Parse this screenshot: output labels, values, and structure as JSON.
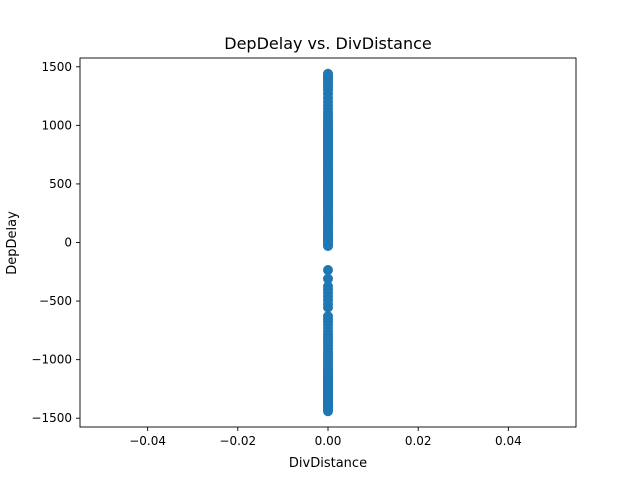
{
  "chart_data": {
    "type": "scatter",
    "title": "DepDelay vs. DivDistance",
    "xlabel": "DivDistance",
    "ylabel": "DepDelay",
    "xlim": [
      -0.055,
      0.055
    ],
    "ylim": [
      -1575,
      1575
    ],
    "x_ticks": [
      -0.04,
      -0.02,
      0.0,
      0.02,
      0.04
    ],
    "x_tick_labels": [
      "−0.04",
      "−0.02",
      "0.00",
      "0.02",
      "0.04"
    ],
    "y_ticks": [
      -1500,
      -1000,
      -500,
      0,
      500,
      1000,
      1500
    ],
    "y_tick_labels": [
      "−1500",
      "−1000",
      "−500",
      "0",
      "500",
      "1000",
      "1500"
    ],
    "grid": false,
    "marker_color": "#1f77b4",
    "series": [
      {
        "x_value": 0,
        "points": [
          {
            "x": 0,
            "y": -1440
          },
          {
            "x": 0,
            "y": -1430
          },
          {
            "x": 0,
            "y": -1420
          },
          {
            "x": 0,
            "y": -1410
          },
          {
            "x": 0,
            "y": -1400
          },
          {
            "x": 0,
            "y": -1390
          },
          {
            "x": 0,
            "y": -1380
          },
          {
            "x": 0,
            "y": -1370
          },
          {
            "x": 0,
            "y": -1360
          },
          {
            "x": 0,
            "y": -1350
          },
          {
            "x": 0,
            "y": -1340
          },
          {
            "x": 0,
            "y": -1330
          },
          {
            "x": 0,
            "y": -1320
          },
          {
            "x": 0,
            "y": -1310
          },
          {
            "x": 0,
            "y": -1300
          },
          {
            "x": 0,
            "y": -1290
          },
          {
            "x": 0,
            "y": -1280
          },
          {
            "x": 0,
            "y": -1270
          },
          {
            "x": 0,
            "y": -1260
          },
          {
            "x": 0,
            "y": -1250
          },
          {
            "x": 0,
            "y": -1240
          },
          {
            "x": 0,
            "y": -1230
          },
          {
            "x": 0,
            "y": -1220
          },
          {
            "x": 0,
            "y": -1210
          },
          {
            "x": 0,
            "y": -1200
          },
          {
            "x": 0,
            "y": -1190
          },
          {
            "x": 0,
            "y": -1180
          },
          {
            "x": 0,
            "y": -1170
          },
          {
            "x": 0,
            "y": -1160
          },
          {
            "x": 0,
            "y": -1150
          },
          {
            "x": 0,
            "y": -1140
          },
          {
            "x": 0,
            "y": -1130
          },
          {
            "x": 0,
            "y": -1120
          },
          {
            "x": 0,
            "y": -1110
          },
          {
            "x": 0,
            "y": -1100
          },
          {
            "x": 0,
            "y": -1085
          },
          {
            "x": 0,
            "y": -1070
          },
          {
            "x": 0,
            "y": -1050
          },
          {
            "x": 0,
            "y": -1030
          },
          {
            "x": 0,
            "y": -1010
          },
          {
            "x": 0,
            "y": -990
          },
          {
            "x": 0,
            "y": -970
          },
          {
            "x": 0,
            "y": -950
          },
          {
            "x": 0,
            "y": -930
          },
          {
            "x": 0,
            "y": -905
          },
          {
            "x": 0,
            "y": -880
          },
          {
            "x": 0,
            "y": -860
          },
          {
            "x": 0,
            "y": -835
          },
          {
            "x": 0,
            "y": -810
          },
          {
            "x": 0,
            "y": -785
          },
          {
            "x": 0,
            "y": -760
          },
          {
            "x": 0,
            "y": -730
          },
          {
            "x": 0,
            "y": -700
          },
          {
            "x": 0,
            "y": -675
          },
          {
            "x": 0,
            "y": -655
          },
          {
            "x": 0,
            "y": -630
          },
          {
            "x": 0,
            "y": -555
          },
          {
            "x": 0,
            "y": -525
          },
          {
            "x": 0,
            "y": -490
          },
          {
            "x": 0,
            "y": -460
          },
          {
            "x": 0,
            "y": -430
          },
          {
            "x": 0,
            "y": -400
          },
          {
            "x": 0,
            "y": -375
          },
          {
            "x": 0,
            "y": -310
          },
          {
            "x": 0,
            "y": -235
          },
          {
            "x": 0,
            "y": -30
          },
          {
            "x": 0,
            "y": -15
          },
          {
            "x": 0,
            "y": 0
          },
          {
            "x": 0,
            "y": 15
          },
          {
            "x": 0,
            "y": 30
          },
          {
            "x": 0,
            "y": 45
          },
          {
            "x": 0,
            "y": 60
          },
          {
            "x": 0,
            "y": 75
          },
          {
            "x": 0,
            "y": 90
          },
          {
            "x": 0,
            "y": 105
          },
          {
            "x": 0,
            "y": 120
          },
          {
            "x": 0,
            "y": 135
          },
          {
            "x": 0,
            "y": 150
          },
          {
            "x": 0,
            "y": 165
          },
          {
            "x": 0,
            "y": 180
          },
          {
            "x": 0,
            "y": 195
          },
          {
            "x": 0,
            "y": 210
          },
          {
            "x": 0,
            "y": 225
          },
          {
            "x": 0,
            "y": 240
          },
          {
            "x": 0,
            "y": 255
          },
          {
            "x": 0,
            "y": 270
          },
          {
            "x": 0,
            "y": 285
          },
          {
            "x": 0,
            "y": 300
          },
          {
            "x": 0,
            "y": 315
          },
          {
            "x": 0,
            "y": 330
          },
          {
            "x": 0,
            "y": 345
          },
          {
            "x": 0,
            "y": 360
          },
          {
            "x": 0,
            "y": 375
          },
          {
            "x": 0,
            "y": 390
          },
          {
            "x": 0,
            "y": 405
          },
          {
            "x": 0,
            "y": 420
          },
          {
            "x": 0,
            "y": 435
          },
          {
            "x": 0,
            "y": 450
          },
          {
            "x": 0,
            "y": 465
          },
          {
            "x": 0,
            "y": 480
          },
          {
            "x": 0,
            "y": 495
          },
          {
            "x": 0,
            "y": 510
          },
          {
            "x": 0,
            "y": 525
          },
          {
            "x": 0,
            "y": 540
          },
          {
            "x": 0,
            "y": 555
          },
          {
            "x": 0,
            "y": 570
          },
          {
            "x": 0,
            "y": 585
          },
          {
            "x": 0,
            "y": 600
          },
          {
            "x": 0,
            "y": 615
          },
          {
            "x": 0,
            "y": 630
          },
          {
            "x": 0,
            "y": 645
          },
          {
            "x": 0,
            "y": 660
          },
          {
            "x": 0,
            "y": 675
          },
          {
            "x": 0,
            "y": 690
          },
          {
            "x": 0,
            "y": 705
          },
          {
            "x": 0,
            "y": 720
          },
          {
            "x": 0,
            "y": 735
          },
          {
            "x": 0,
            "y": 750
          },
          {
            "x": 0,
            "y": 765
          },
          {
            "x": 0,
            "y": 780
          },
          {
            "x": 0,
            "y": 795
          },
          {
            "x": 0,
            "y": 810
          },
          {
            "x": 0,
            "y": 825
          },
          {
            "x": 0,
            "y": 840
          },
          {
            "x": 0,
            "y": 855
          },
          {
            "x": 0,
            "y": 870
          },
          {
            "x": 0,
            "y": 885
          },
          {
            "x": 0,
            "y": 900
          },
          {
            "x": 0,
            "y": 915
          },
          {
            "x": 0,
            "y": 930
          },
          {
            "x": 0,
            "y": 945
          },
          {
            "x": 0,
            "y": 960
          },
          {
            "x": 0,
            "y": 975
          },
          {
            "x": 0,
            "y": 990
          },
          {
            "x": 0,
            "y": 1005
          },
          {
            "x": 0,
            "y": 1020
          },
          {
            "x": 0,
            "y": 1040
          },
          {
            "x": 0,
            "y": 1060
          },
          {
            "x": 0,
            "y": 1085
          },
          {
            "x": 0,
            "y": 1110
          },
          {
            "x": 0,
            "y": 1140
          },
          {
            "x": 0,
            "y": 1170
          },
          {
            "x": 0,
            "y": 1200
          },
          {
            "x": 0,
            "y": 1235
          },
          {
            "x": 0,
            "y": 1270
          },
          {
            "x": 0,
            "y": 1300
          },
          {
            "x": 0,
            "y": 1320
          },
          {
            "x": 0,
            "y": 1340
          },
          {
            "x": 0,
            "y": 1360
          },
          {
            "x": 0,
            "y": 1380
          },
          {
            "x": 0,
            "y": 1395
          },
          {
            "x": 0,
            "y": 1410
          },
          {
            "x": 0,
            "y": 1425
          },
          {
            "x": 0,
            "y": 1440
          }
        ]
      }
    ]
  }
}
